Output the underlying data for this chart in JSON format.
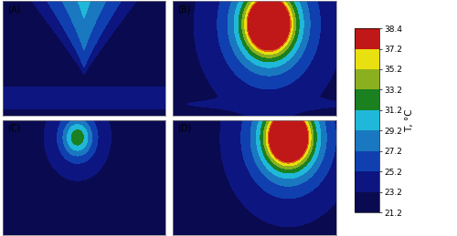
{
  "colorbar_label": "T, °C",
  "temp_levels": [
    21.2,
    23.2,
    25.2,
    27.2,
    29.2,
    31.2,
    33.2,
    35.2,
    37.2,
    38.4
  ],
  "level_colors": [
    "#0a0a50",
    "#0d1580",
    "#1040b0",
    "#1a78c0",
    "#20b8d8",
    "#1a8020",
    "#8ab020",
    "#e8e010",
    "#e06010",
    "#c01818"
  ],
  "panel_labels": [
    "(A)",
    "(B)",
    "(C)",
    "(D)"
  ],
  "figsize": [
    5.0,
    2.59
  ],
  "dpi": 100
}
